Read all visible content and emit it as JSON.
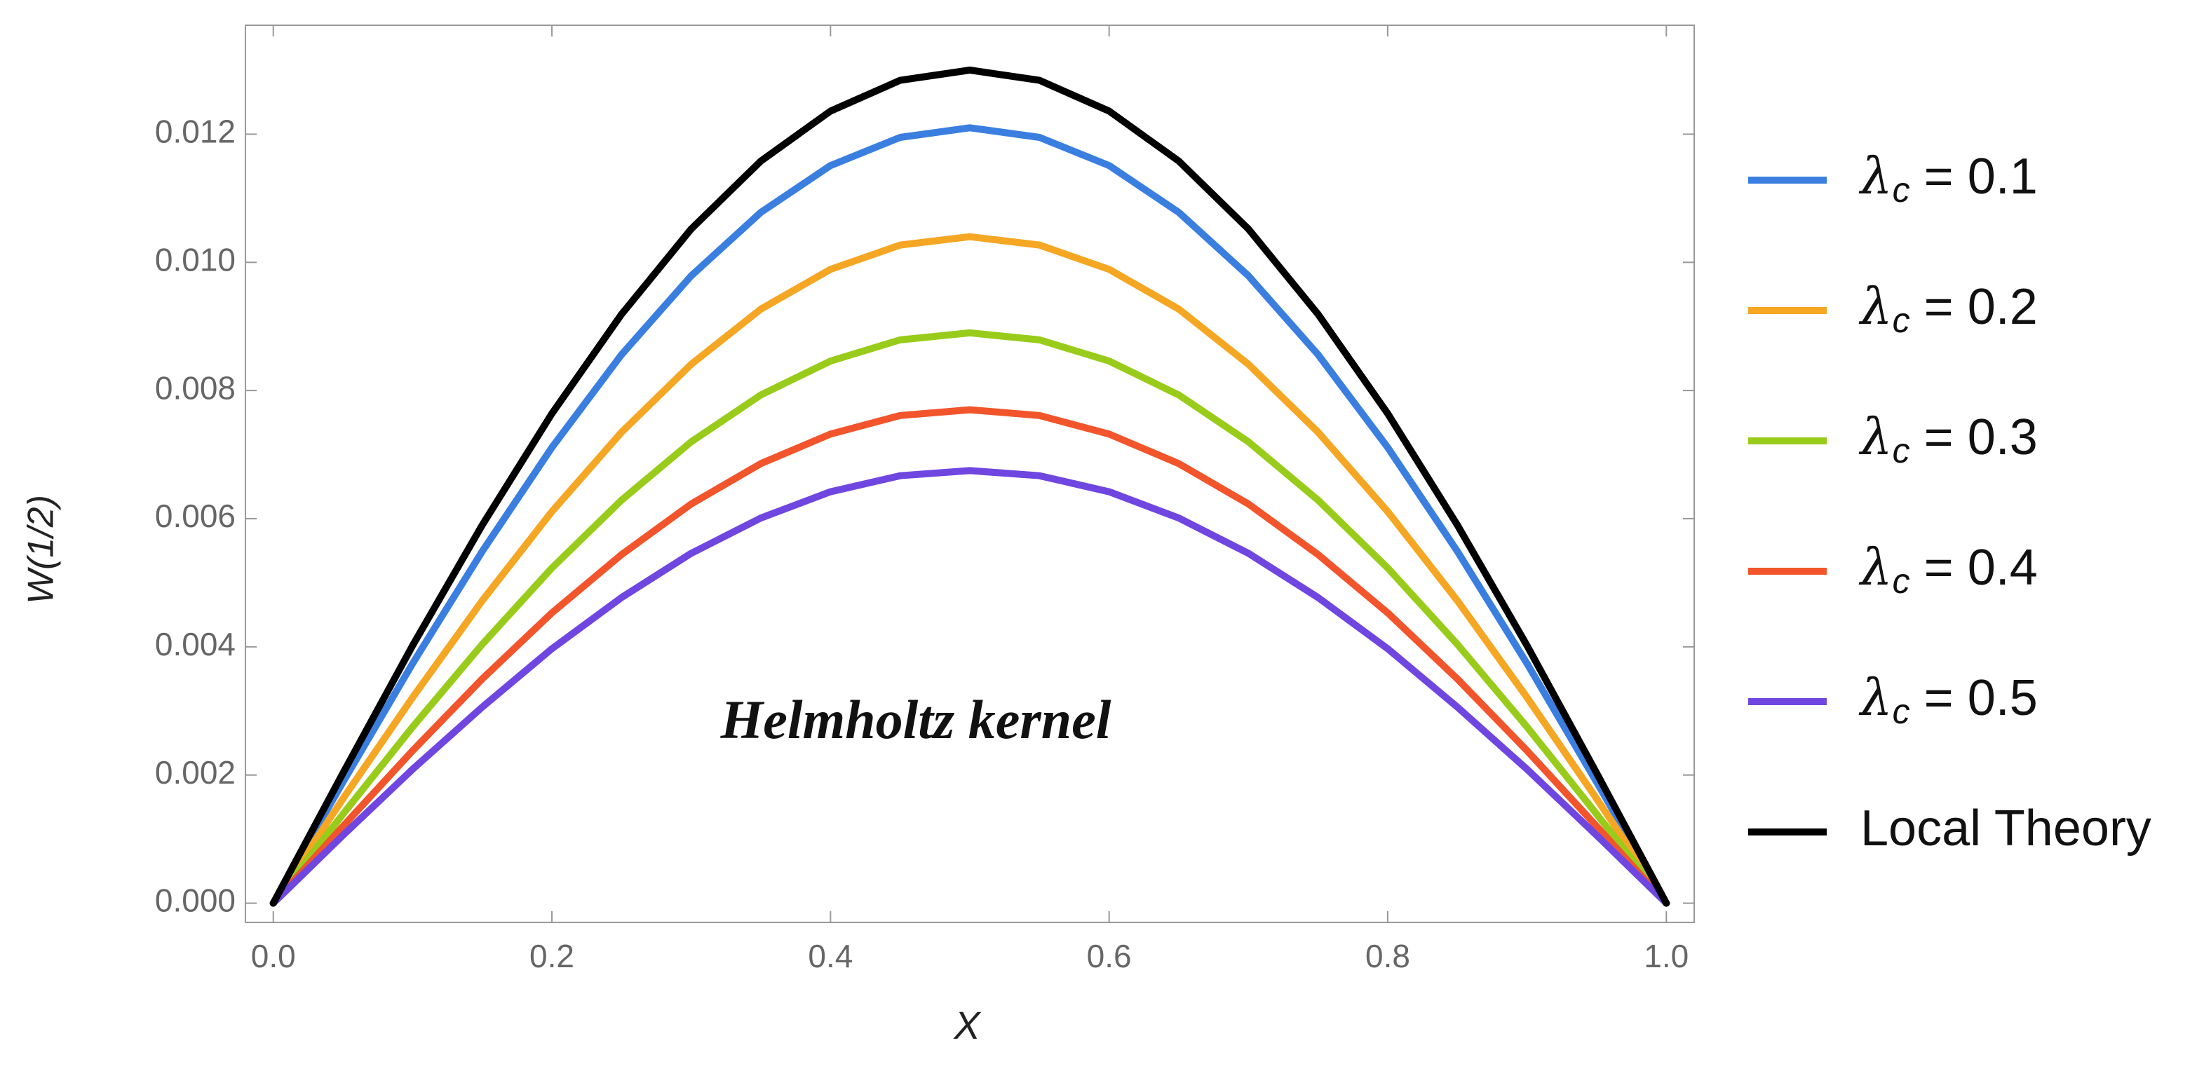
{
  "chart_data": {
    "type": "line",
    "xlabel": "X",
    "ylabel": "W(1/2)",
    "annotation": "Helmholtz kernel",
    "x": [
      0,
      0.05,
      0.1,
      0.15,
      0.2,
      0.25,
      0.3,
      0.35,
      0.4,
      0.45,
      0.5,
      0.55,
      0.6,
      0.65,
      0.7,
      0.75,
      0.8,
      0.85,
      0.9,
      0.95,
      1
    ],
    "series": [
      {
        "name": "λc = 0.1",
        "color": "#3a7fe0",
        "values": [
          0,
          0.00189,
          0.00374,
          0.00549,
          0.00711,
          0.00856,
          0.00979,
          0.01078,
          0.01151,
          0.01195,
          0.0121,
          0.01195,
          0.01151,
          0.01078,
          0.00979,
          0.00856,
          0.00711,
          0.00549,
          0.00374,
          0.00189,
          0
        ]
      },
      {
        "name": "λc = 0.2",
        "color": "#f5a623",
        "values": [
          0,
          0.00163,
          0.00321,
          0.00472,
          0.00611,
          0.00735,
          0.00841,
          0.00927,
          0.00989,
          0.01027,
          0.0104,
          0.01027,
          0.00989,
          0.00927,
          0.00841,
          0.00735,
          0.00611,
          0.00472,
          0.00321,
          0.00163,
          0
        ]
      },
      {
        "name": "λc = 0.3",
        "color": "#99cc1a",
        "values": [
          0,
          0.00139,
          0.00275,
          0.00404,
          0.00523,
          0.00629,
          0.0072,
          0.00793,
          0.00846,
          0.00879,
          0.0089,
          0.00879,
          0.00846,
          0.00793,
          0.0072,
          0.00629,
          0.00523,
          0.00404,
          0.00275,
          0.00139,
          0
        ]
      },
      {
        "name": "λc = 0.4",
        "color": "#f2552c",
        "values": [
          0,
          0.0012,
          0.00238,
          0.0035,
          0.00453,
          0.00544,
          0.00623,
          0.00686,
          0.00732,
          0.00761,
          0.0077,
          0.00761,
          0.00732,
          0.00686,
          0.00623,
          0.00544,
          0.00453,
          0.0035,
          0.00238,
          0.0012,
          0
        ]
      },
      {
        "name": "λc = 0.5",
        "color": "#7046e0",
        "values": [
          0,
          0.00106,
          0.00209,
          0.00306,
          0.00397,
          0.00477,
          0.00546,
          0.00601,
          0.00642,
          0.00667,
          0.00675,
          0.00667,
          0.00642,
          0.00601,
          0.00546,
          0.00477,
          0.00397,
          0.00306,
          0.00209,
          0.00106,
          0
        ]
      },
      {
        "name": "Local Theory",
        "color": "#000000",
        "values": [
          0,
          0.00203,
          0.00402,
          0.0059,
          0.00764,
          0.00919,
          0.01052,
          0.01158,
          0.01236,
          0.01284,
          0.013,
          0.01284,
          0.01236,
          0.01158,
          0.01052,
          0.00919,
          0.00764,
          0.0059,
          0.00402,
          0.00203,
          0
        ]
      }
    ],
    "xlim": [
      -0.02,
      1.02
    ],
    "ylim": [
      -0.0003,
      0.0137
    ],
    "xticks": [
      {
        "value": 0,
        "label": "0.0"
      },
      0.2,
      0.4,
      0.6,
      0.8,
      {
        "value": 1,
        "label": "1.0"
      }
    ],
    "yticks": [
      {
        "value": 0,
        "label": "0.000"
      },
      {
        "value": 0.002,
        "label": "0.002"
      },
      {
        "value": 0.004,
        "label": "0.004"
      },
      {
        "value": 0.006,
        "label": "0.006"
      },
      {
        "value": 0.008,
        "label": "0.008"
      },
      {
        "value": 0.01,
        "label": "0.010"
      },
      {
        "value": 0.012,
        "label": "0.012"
      }
    ],
    "legend": "right"
  }
}
